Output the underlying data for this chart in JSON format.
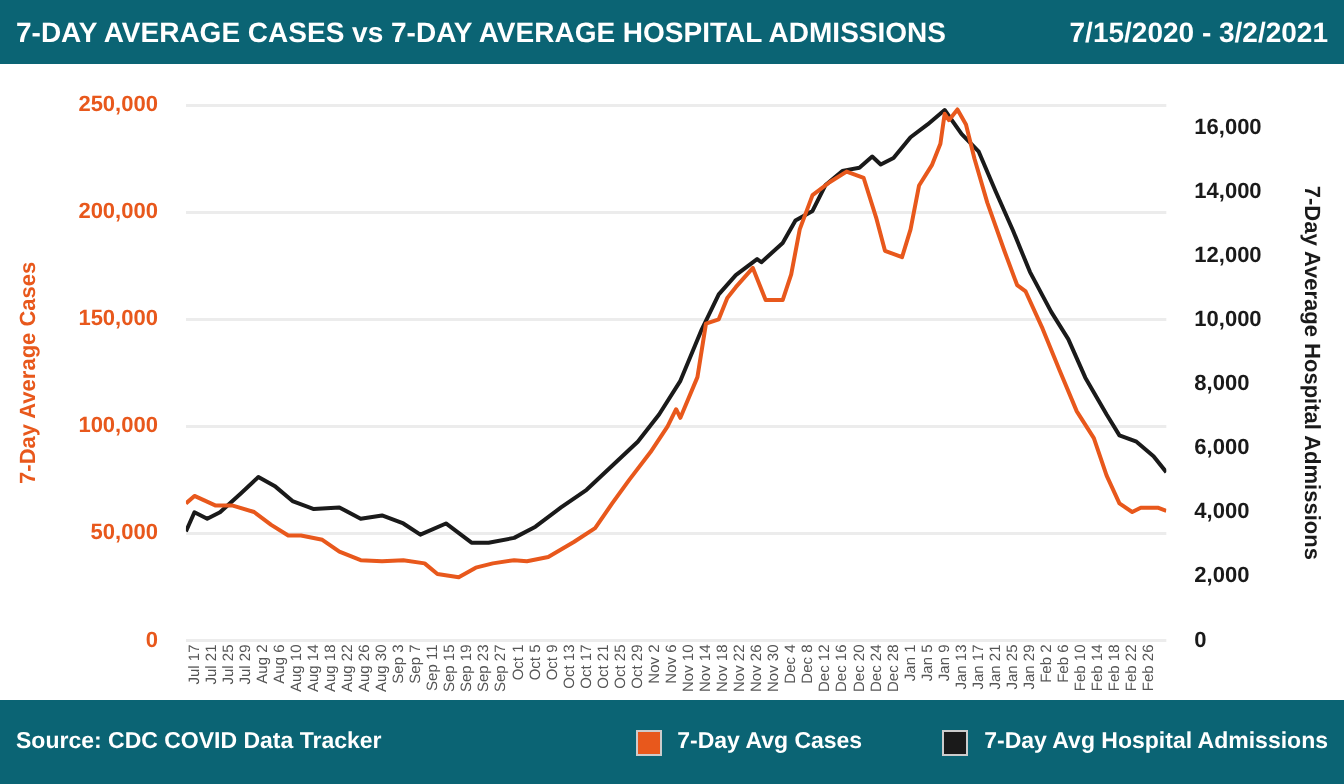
{
  "chart_data": {
    "type": "line",
    "title": "7-DAY AVERAGE CASES vs 7-DAY AVERAGE HOSPITAL ADMISSIONS",
    "subtitle": "7/15/2020 - 3/2/2021",
    "ylabel": "7-Day Average Cases",
    "y2label": "7-Day Average Hospital Admissions",
    "annotations": [
      "Source: CDC COVID Data Tracker"
    ],
    "series": [
      {
        "name": "7-Day Avg Cases",
        "color": "#e8581c",
        "x": [
          "2020-07-15",
          "2020-07-17",
          "2020-07-22",
          "2020-07-26",
          "2020-07-31",
          "2020-08-04",
          "2020-08-08",
          "2020-08-11",
          "2020-08-16",
          "2020-08-20",
          "2020-08-25",
          "2020-08-30",
          "2020-09-04",
          "2020-09-09",
          "2020-09-12",
          "2020-09-17",
          "2020-09-21",
          "2020-09-25",
          "2020-09-30",
          "2020-10-03",
          "2020-10-08",
          "2020-10-14",
          "2020-10-19",
          "2020-10-23",
          "2020-10-27",
          "2020-11-01",
          "2020-11-05",
          "2020-11-07",
          "2020-11-08",
          "2020-11-12",
          "2020-11-14",
          "2020-11-17",
          "2020-11-19",
          "2020-11-21",
          "2020-11-25",
          "2020-11-28",
          "2020-12-02",
          "2020-12-04",
          "2020-12-06",
          "2020-12-09",
          "2020-12-13",
          "2020-12-17",
          "2020-12-21",
          "2020-12-24",
          "2020-12-26",
          "2020-12-30",
          "2021-01-01",
          "2021-01-03",
          "2021-01-06",
          "2021-01-08",
          "2021-01-09",
          "2021-01-10",
          "2021-01-12",
          "2021-01-14",
          "2021-01-16",
          "2021-01-19",
          "2021-01-23",
          "2021-01-26",
          "2021-01-28",
          "2021-02-01",
          "2021-02-05",
          "2021-02-09",
          "2021-02-13",
          "2021-02-16",
          "2021-02-19",
          "2021-02-22",
          "2021-02-24",
          "2021-02-28",
          "2021-03-02"
        ],
        "values": [
          64000,
          67500,
          63000,
          63000,
          60000,
          54000,
          49000,
          49000,
          47000,
          41500,
          37500,
          37000,
          37500,
          36000,
          31000,
          29500,
          34000,
          36000,
          37500,
          37000,
          39000,
          46000,
          52500,
          64000,
          75000,
          88000,
          100000,
          108000,
          104000,
          123000,
          148000,
          150000,
          160000,
          165000,
          174000,
          159000,
          159000,
          171000,
          192000,
          208000,
          214000,
          219000,
          216000,
          197000,
          182000,
          179000,
          192000,
          212500,
          222000,
          232000,
          246000,
          243000,
          248000,
          241000,
          225000,
          204500,
          182000,
          166000,
          163000,
          145500,
          126000,
          107000,
          94500,
          77000,
          64000,
          60000,
          62000,
          62000,
          60500
        ]
      },
      {
        "name": "7-Day Avg Hospital Admissions",
        "color": "#1a1a1a",
        "axis": "y2",
        "x": [
          "2020-07-15",
          "2020-07-17",
          "2020-07-20",
          "2020-07-23",
          "2020-07-28",
          "2020-08-01",
          "2020-08-05",
          "2020-08-09",
          "2020-08-14",
          "2020-08-20",
          "2020-08-25",
          "2020-08-30",
          "2020-09-04",
          "2020-09-08",
          "2020-09-14",
          "2020-09-20",
          "2020-09-24",
          "2020-09-30",
          "2020-10-05",
          "2020-10-11",
          "2020-10-17",
          "2020-10-23",
          "2020-10-29",
          "2020-11-03",
          "2020-11-08",
          "2020-11-13",
          "2020-11-17",
          "2020-11-21",
          "2020-11-26",
          "2020-11-27",
          "2020-12-02",
          "2020-12-05",
          "2020-12-09",
          "2020-12-12",
          "2020-12-16",
          "2020-12-20",
          "2020-12-23",
          "2020-12-25",
          "2020-12-28",
          "2021-01-01",
          "2021-01-05",
          "2021-01-09",
          "2021-01-13",
          "2021-01-17",
          "2021-01-21",
          "2021-01-25",
          "2021-01-29",
          "2021-02-03",
          "2021-02-07",
          "2021-02-11",
          "2021-02-16",
          "2021-02-19",
          "2021-02-23",
          "2021-02-27",
          "2021-03-02"
        ],
        "values": [
          3400,
          4000,
          3800,
          4000,
          4600,
          5100,
          4800,
          4350,
          4100,
          4150,
          3800,
          3900,
          3650,
          3300,
          3650,
          3050,
          3050,
          3200,
          3550,
          4150,
          4700,
          5450,
          6200,
          7050,
          8100,
          9700,
          10800,
          11400,
          11900,
          11800,
          12400,
          13100,
          13400,
          14200,
          14650,
          14750,
          15100,
          14850,
          15050,
          15700,
          16100,
          16550,
          15800,
          15250,
          14000,
          12800,
          11500,
          10250,
          9400,
          8200,
          7050,
          6400,
          6200,
          5750,
          5250
        ]
      }
    ],
    "xlim": [
      "2020-07-15",
      "2021-03-02"
    ],
    "xticks": [
      {
        "value": "2020-07-17",
        "label": "Jul 17"
      },
      {
        "value": "2020-07-21",
        "label": "Jul 21"
      },
      {
        "value": "2020-07-25",
        "label": "Jul 25"
      },
      {
        "value": "2020-07-29",
        "label": "Jul 29"
      },
      {
        "value": "2020-08-02",
        "label": "Aug 2"
      },
      {
        "value": "2020-08-06",
        "label": "Aug 6"
      },
      {
        "value": "2020-08-10",
        "label": "Aug 10"
      },
      {
        "value": "2020-08-14",
        "label": "Aug 14"
      },
      {
        "value": "2020-08-18",
        "label": "Aug 18"
      },
      {
        "value": "2020-08-22",
        "label": "Aug 22"
      },
      {
        "value": "2020-08-26",
        "label": "Aug 26"
      },
      {
        "value": "2020-08-30",
        "label": "Aug 30"
      },
      {
        "value": "2020-09-03",
        "label": "Sep 3"
      },
      {
        "value": "2020-09-07",
        "label": "Sep 7"
      },
      {
        "value": "2020-09-11",
        "label": "Sep 11"
      },
      {
        "value": "2020-09-15",
        "label": "Sep 15"
      },
      {
        "value": "2020-09-19",
        "label": "Sep 19"
      },
      {
        "value": "2020-09-23",
        "label": "Sep 23"
      },
      {
        "value": "2020-09-27",
        "label": "Sep 27"
      },
      {
        "value": "2020-10-01",
        "label": "Oct 1"
      },
      {
        "value": "2020-10-05",
        "label": "Oct 5"
      },
      {
        "value": "2020-10-09",
        "label": "Oct 9"
      },
      {
        "value": "2020-10-13",
        "label": "Oct 13"
      },
      {
        "value": "2020-10-17",
        "label": "Oct 17"
      },
      {
        "value": "2020-10-21",
        "label": "Oct 21"
      },
      {
        "value": "2020-10-25",
        "label": "Oct 25"
      },
      {
        "value": "2020-10-29",
        "label": "Oct 29"
      },
      {
        "value": "2020-11-02",
        "label": "Nov 2"
      },
      {
        "value": "2020-11-06",
        "label": "Nov 6"
      },
      {
        "value": "2020-11-10",
        "label": "Nov 10"
      },
      {
        "value": "2020-11-14",
        "label": "Nov 14"
      },
      {
        "value": "2020-11-18",
        "label": "Nov 18"
      },
      {
        "value": "2020-11-22",
        "label": "Nov 22"
      },
      {
        "value": "2020-11-26",
        "label": "Nov 26"
      },
      {
        "value": "2020-11-30",
        "label": "Nov 30"
      },
      {
        "value": "2020-12-04",
        "label": "Dec 4"
      },
      {
        "value": "2020-12-08",
        "label": "Dec 8"
      },
      {
        "value": "2020-12-12",
        "label": "Dec 12"
      },
      {
        "value": "2020-12-16",
        "label": "Dec 16"
      },
      {
        "value": "2020-12-20",
        "label": "Dec 20"
      },
      {
        "value": "2020-12-24",
        "label": "Dec 24"
      },
      {
        "value": "2020-12-28",
        "label": "Dec 28"
      },
      {
        "value": "2021-01-01",
        "label": "Jan 1"
      },
      {
        "value": "2021-01-05",
        "label": "Jan 5"
      },
      {
        "value": "2021-01-09",
        "label": "Jan 9"
      },
      {
        "value": "2021-01-13",
        "label": "Jan 13"
      },
      {
        "value": "2021-01-17",
        "label": "Jan 17"
      },
      {
        "value": "2021-01-21",
        "label": "Jan 21"
      },
      {
        "value": "2021-01-25",
        "label": "Jan 25"
      },
      {
        "value": "2021-01-29",
        "label": "Jan 29"
      },
      {
        "value": "2021-02-02",
        "label": "Feb 2"
      },
      {
        "value": "2021-02-06",
        "label": "Feb 6"
      },
      {
        "value": "2021-02-10",
        "label": "Feb 10"
      },
      {
        "value": "2021-02-14",
        "label": "Feb 14"
      },
      {
        "value": "2021-02-18",
        "label": "Feb 18"
      },
      {
        "value": "2021-02-22",
        "label": "Feb 22"
      },
      {
        "value": "2021-02-26",
        "label": "Feb 26"
      }
    ],
    "ylim": [
      0,
      250000
    ],
    "yticks": [
      0,
      {
        "value": 50000,
        "label": "50,000"
      },
      {
        "value": 100000,
        "label": "100,000"
      },
      {
        "value": 150000,
        "label": "150,000"
      },
      {
        "value": 200000,
        "label": "200,000"
      },
      {
        "value": 250000,
        "label": "250,000"
      }
    ],
    "y2lim": [
      0,
      16700
    ],
    "y2ticks": [
      0,
      {
        "value": 2000,
        "label": "2,000"
      },
      {
        "value": 4000,
        "label": "4,000"
      },
      {
        "value": 6000,
        "label": "6,000"
      },
      {
        "value": 8000,
        "label": "8,000"
      },
      {
        "value": 10000,
        "label": "10,000"
      },
      {
        "value": 12000,
        "label": "12,000"
      },
      {
        "value": 14000,
        "label": "14,000"
      },
      {
        "value": 16000,
        "label": "16,000"
      }
    ],
    "grid": "y",
    "legend": "bottom",
    "marker": "none",
    "line_style": "solid"
  }
}
